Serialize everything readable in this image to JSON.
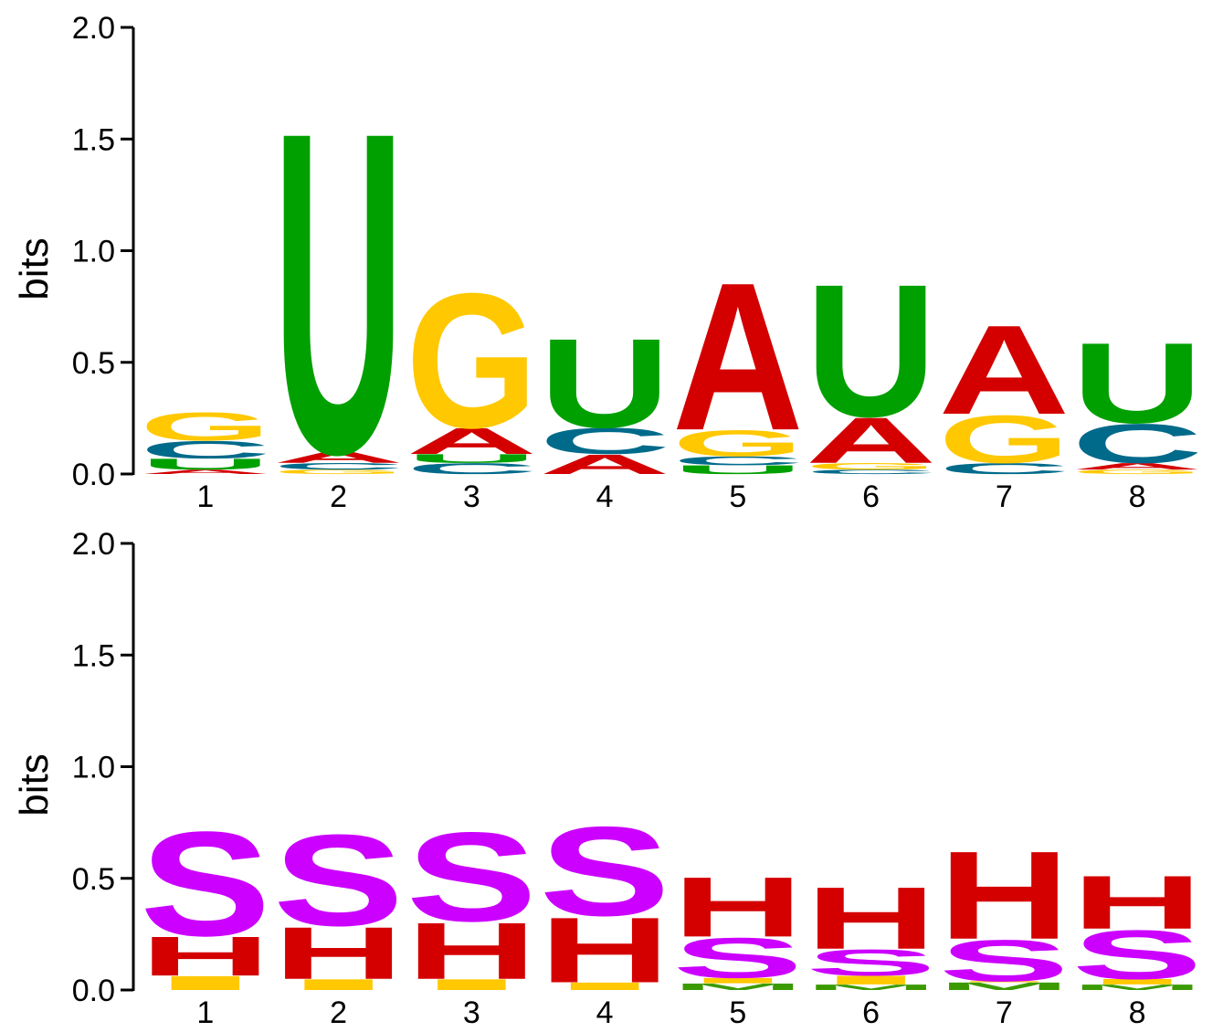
{
  "chart_data": [
    {
      "type": "sequence-logo",
      "alphabet": "RNA",
      "ylabel": "bits",
      "ylim": [
        0,
        2.0
      ],
      "yticks": [
        "0.0",
        "0.5",
        "1.0",
        "1.5",
        "2.0"
      ],
      "positions": [
        "1",
        "2",
        "3",
        "4",
        "5",
        "6",
        "7",
        "8"
      ],
      "colors": {
        "A": "#d40000",
        "C": "#006a8a",
        "G": "#ffc800",
        "U": "#00a000"
      },
      "stacks": [
        [
          {
            "letter": "A",
            "bits": 0.02
          },
          {
            "letter": "U",
            "bits": 0.05
          },
          {
            "letter": "C",
            "bits": 0.08
          },
          {
            "letter": "G",
            "bits": 0.13
          }
        ],
        [
          {
            "letter": "G",
            "bits": 0.02
          },
          {
            "letter": "C",
            "bits": 0.03
          },
          {
            "letter": "A",
            "bits": 0.05
          },
          {
            "letter": "U",
            "bits": 1.48
          }
        ],
        [
          {
            "letter": "C",
            "bits": 0.05
          },
          {
            "letter": "U",
            "bits": 0.04
          },
          {
            "letter": "A",
            "bits": 0.12
          },
          {
            "letter": "G",
            "bits": 0.62
          }
        ],
        [
          {
            "letter": "A",
            "bits": 0.09
          },
          {
            "letter": "C",
            "bits": 0.12
          },
          {
            "letter": "U",
            "bits": 0.41
          }
        ],
        [
          {
            "letter": "U",
            "bits": 0.04
          },
          {
            "letter": "C",
            "bits": 0.04
          },
          {
            "letter": "G",
            "bits": 0.12
          },
          {
            "letter": "A",
            "bits": 0.68
          }
        ],
        [
          {
            "letter": "C",
            "bits": 0.02
          },
          {
            "letter": "G",
            "bits": 0.03
          },
          {
            "letter": "A",
            "bits": 0.21
          },
          {
            "letter": "U",
            "bits": 0.61
          }
        ],
        [
          {
            "letter": "C",
            "bits": 0.05
          },
          {
            "letter": "G",
            "bits": 0.22
          },
          {
            "letter": "A",
            "bits": 0.41
          }
        ],
        [
          {
            "letter": "G",
            "bits": 0.02
          },
          {
            "letter": "A",
            "bits": 0.03
          },
          {
            "letter": "C",
            "bits": 0.18
          },
          {
            "letter": "U",
            "bits": 0.37
          }
        ]
      ]
    },
    {
      "type": "sequence-logo",
      "alphabet": "structure",
      "ylabel": "bits",
      "ylim": [
        0,
        2.0
      ],
      "yticks": [
        "0.0",
        "0.5",
        "1.0",
        "1.5",
        "2.0"
      ],
      "positions": [
        "1",
        "2",
        "3",
        "4",
        "5",
        "6",
        "7",
        "8"
      ],
      "colors": {
        "S": "#cc00ff",
        "H": "#d40000",
        "I": "#ffc800",
        "M": "#3a9a00"
      },
      "stacks": [
        [
          {
            "letter": "I",
            "bits": 0.065
          },
          {
            "letter": "H",
            "bits": 0.18
          },
          {
            "letter": "S",
            "bits": 0.48
          }
        ],
        [
          {
            "letter": "I",
            "bits": 0.05
          },
          {
            "letter": "H",
            "bits": 0.24
          },
          {
            "letter": "S",
            "bits": 0.42
          }
        ],
        [
          {
            "letter": "I",
            "bits": 0.05
          },
          {
            "letter": "H",
            "bits": 0.26
          },
          {
            "letter": "S",
            "bits": 0.41
          }
        ],
        [
          {
            "letter": "I",
            "bits": 0.035
          },
          {
            "letter": "H",
            "bits": 0.3
          },
          {
            "letter": "S",
            "bits": 0.41
          }
        ],
        [
          {
            "letter": "M",
            "bits": 0.03
          },
          {
            "letter": "I",
            "bits": 0.025
          },
          {
            "letter": "S",
            "bits": 0.185
          },
          {
            "letter": "H",
            "bits": 0.275
          }
        ],
        [
          {
            "letter": "M",
            "bits": 0.025
          },
          {
            "letter": "I",
            "bits": 0.04
          },
          {
            "letter": "S",
            "bits": 0.12
          },
          {
            "letter": "H",
            "bits": 0.285
          }
        ],
        [
          {
            "letter": "M",
            "bits": 0.035
          },
          {
            "letter": "I",
            "bits": 0.005
          },
          {
            "letter": "S",
            "bits": 0.19
          },
          {
            "letter": "H",
            "bits": 0.405
          }
        ],
        [
          {
            "letter": "M",
            "bits": 0.025
          },
          {
            "letter": "I",
            "bits": 0.025
          },
          {
            "letter": "S",
            "bits": 0.225
          },
          {
            "letter": "H",
            "bits": 0.245
          }
        ]
      ]
    }
  ]
}
